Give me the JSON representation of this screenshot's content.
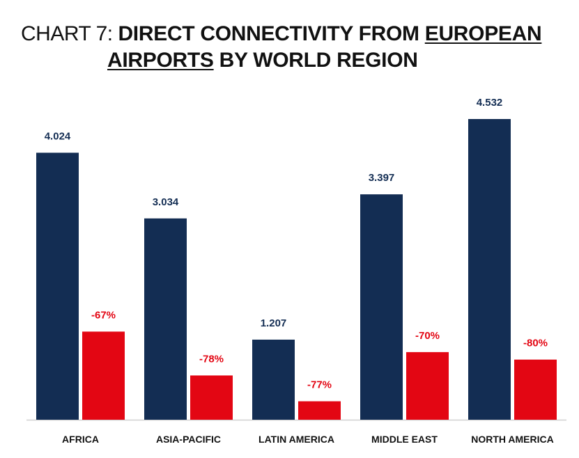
{
  "title": {
    "prefix": "CHART 7: ",
    "part1": "DIRECT CONNECTIVITY FROM ",
    "part1_underlined": "EUROPEAN",
    "part2_underlined": "AIRPORTS",
    "part2": " BY WORLD REGION"
  },
  "chart_data": {
    "type": "bar",
    "title": "CHART 7: DIRECT CONNECTIVITY FROM EUROPEAN AIRPORTS BY WORLD REGION",
    "categories": [
      "AFRICA",
      "ASIA-PACIFIC",
      "LATIN AMERICA",
      "MIDDLE EAST",
      "NORTH AMERICA"
    ],
    "series": [
      {
        "color": "#132d53",
        "values": [
          4024,
          3034,
          1207,
          3397,
          4532
        ],
        "labels": [
          "4.024",
          "3.034",
          "1.207",
          "3.397",
          "4.532"
        ]
      },
      {
        "color": "#e30613",
        "values": [
          1328,
          667,
          278,
          1019,
          906
        ],
        "labels": [
          "-67%",
          "-78%",
          "-77%",
          "-70%",
          "-80%"
        ]
      }
    ],
    "ylim": [
      0,
      4532
    ],
    "grid": false,
    "legend": "none"
  }
}
